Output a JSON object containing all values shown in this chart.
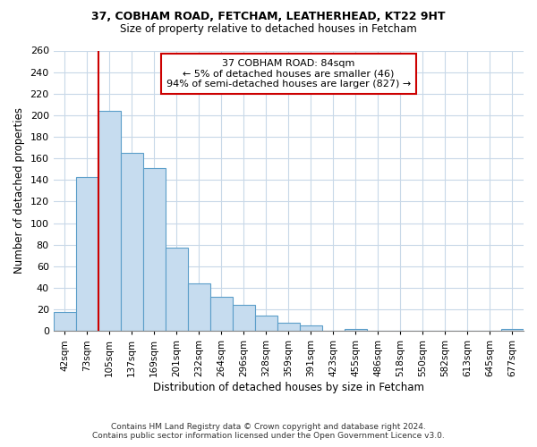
{
  "title_line1": "37, COBHAM ROAD, FETCHAM, LEATHERHEAD, KT22 9HT",
  "title_line2": "Size of property relative to detached houses in Fetcham",
  "xlabel": "Distribution of detached houses by size in Fetcham",
  "ylabel": "Number of detached properties",
  "bar_labels": [
    "42sqm",
    "73sqm",
    "105sqm",
    "137sqm",
    "169sqm",
    "201sqm",
    "232sqm",
    "264sqm",
    "296sqm",
    "328sqm",
    "359sqm",
    "391sqm",
    "423sqm",
    "455sqm",
    "486sqm",
    "518sqm",
    "550sqm",
    "582sqm",
    "613sqm",
    "645sqm",
    "677sqm"
  ],
  "bar_heights": [
    18,
    143,
    204,
    165,
    151,
    77,
    44,
    32,
    24,
    14,
    8,
    5,
    0,
    2,
    0,
    0,
    0,
    0,
    0,
    0,
    2
  ],
  "bar_color": "#c6dcef",
  "bar_edge_color": "#5b9ec9",
  "vline_x_index": 1.5,
  "vline_color": "#cc0000",
  "annotation_title": "37 COBHAM ROAD: 84sqm",
  "annotation_line1": "← 5% of detached houses are smaller (46)",
  "annotation_line2": "94% of semi-detached houses are larger (827) →",
  "annotation_box_color": "#ffffff",
  "annotation_box_edge_color": "#cc0000",
  "ylim": [
    0,
    260
  ],
  "yticks": [
    0,
    20,
    40,
    60,
    80,
    100,
    120,
    140,
    160,
    180,
    200,
    220,
    240,
    260
  ],
  "footer_line1": "Contains HM Land Registry data © Crown copyright and database right 2024.",
  "footer_line2": "Contains public sector information licensed under the Open Government Licence v3.0.",
  "background_color": "#ffffff",
  "grid_color": "#c8d8e8"
}
